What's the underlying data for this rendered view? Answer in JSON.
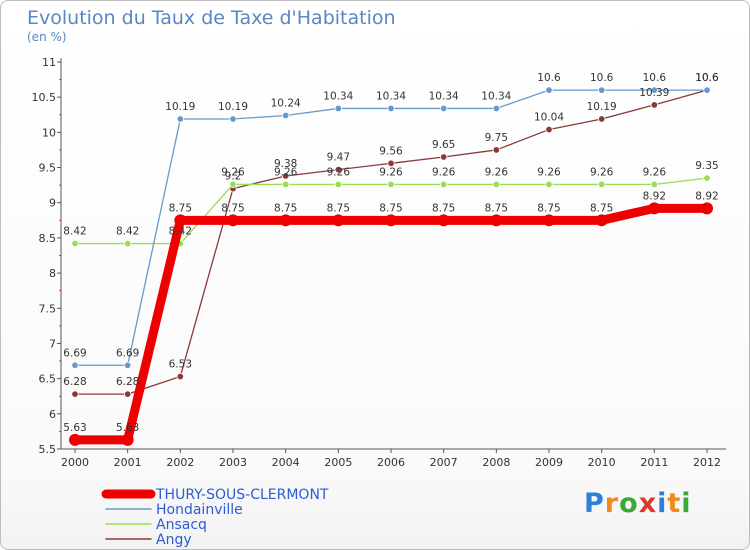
{
  "chart_data": {
    "type": "line",
    "title": "Evolution du Taux de Taxe d'Habitation",
    "subtitle": "(en %)",
    "x": [
      "2000",
      "2001",
      "2002",
      "2003",
      "2004",
      "2005",
      "2006",
      "2007",
      "2008",
      "2009",
      "2010",
      "2011",
      "2012"
    ],
    "ylim": [
      5.5,
      11
    ],
    "yticks": [
      "5.5",
      "6",
      "6.5",
      "7",
      "7.5",
      "8",
      "8.5",
      "9",
      "9.5",
      "10",
      "10.5",
      "11"
    ],
    "grid": false,
    "series": [
      {
        "name": "THURY-SOUS-CLERMONT",
        "color": "#ee0000",
        "values": [
          5.63,
          5.63,
          8.75,
          8.75,
          8.75,
          8.75,
          8.75,
          8.75,
          8.75,
          8.75,
          8.75,
          8.92,
          8.92
        ],
        "labels": [
          "5.63",
          "5.63",
          "8.75",
          "8.75",
          "8.75",
          "8.75",
          "8.75",
          "8.75",
          "8.75",
          "8.75",
          "8.75",
          "8.92",
          "8.92"
        ]
      },
      {
        "name": "Hondainville",
        "color": "#6699cc",
        "values": [
          6.69,
          6.69,
          10.19,
          10.19,
          10.24,
          10.34,
          10.34,
          10.34,
          10.34,
          10.6,
          10.6,
          10.6,
          10.6
        ],
        "labels": [
          "6.69",
          "6.69",
          "10.19",
          "10.19",
          "10.24",
          "10.34",
          "10.34",
          "10.34",
          "10.34",
          "10.6",
          "10.6",
          "10.6",
          "10.6"
        ]
      },
      {
        "name": "Ansacq",
        "color": "#99dd55",
        "values": [
          8.42,
          8.42,
          8.42,
          9.26,
          9.26,
          9.26,
          9.26,
          9.26,
          9.26,
          9.26,
          9.26,
          9.26,
          9.35
        ],
        "labels": [
          "8.42",
          "8.42",
          "8.42",
          "9.26",
          "9.26",
          "9.26",
          "9.26",
          "9.26",
          "9.26",
          "9.26",
          "9.26",
          "9.26",
          "9.35"
        ]
      },
      {
        "name": "Angy",
        "color": "#8b3a3a",
        "values": [
          6.28,
          6.28,
          6.53,
          9.2,
          9.38,
          9.47,
          9.56,
          9.65,
          9.75,
          10.04,
          10.19,
          10.39,
          10.6
        ],
        "labels": [
          "6.28",
          "6.28",
          "6.53",
          "9.2",
          "9.38",
          "9.47",
          "9.56",
          "9.65",
          "9.75",
          "10.04",
          "10.19",
          "10.39",
          "10.6"
        ]
      }
    ]
  },
  "logo": {
    "letters": [
      "P",
      "r",
      "o",
      "x",
      "i",
      "t",
      "i"
    ],
    "colors": [
      "#2e7fd6",
      "#f08a1c",
      "#3aaa35",
      "#d93b2b",
      "#2e7fd6",
      "#f08a1c",
      "#3aaa35"
    ]
  }
}
